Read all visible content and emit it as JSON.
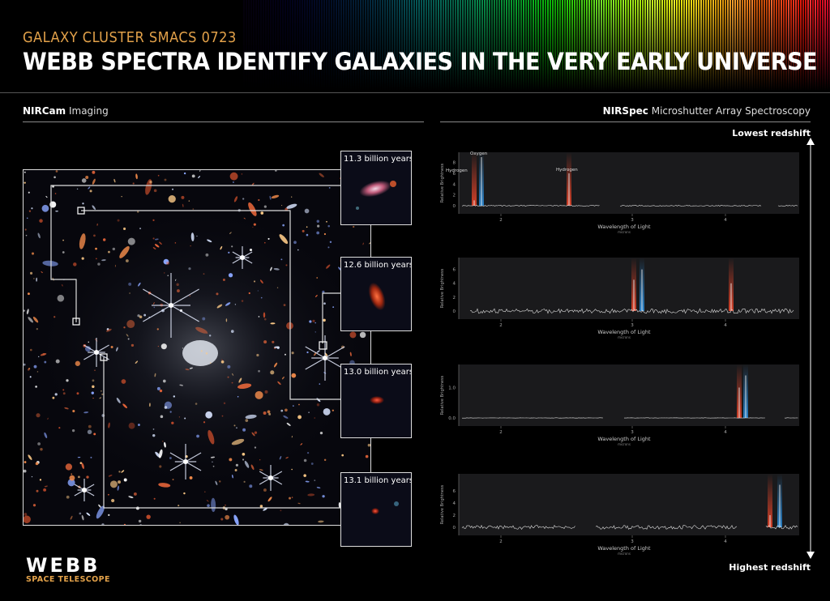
{
  "header": {
    "subtitle": "GALAXY CLUSTER SMACS 0723",
    "title": "WEBB SPECTRA IDENTIFY GALAXIES IN THE VERY EARLY UNIVERSE"
  },
  "left_section": {
    "bold": "NIRCam",
    "rest": " Imaging"
  },
  "right_section": {
    "bold": "NIRSpec",
    "rest": " Microshutter Array Spectroscopy"
  },
  "redshift": {
    "top": "Lowest redshift",
    "bottom": "Highest redshift"
  },
  "thumbnails": [
    {
      "label": "11.3 billion years"
    },
    {
      "label": "12.6 billion years"
    },
    {
      "label": "13.0 billion years"
    },
    {
      "label": "13.1 billion years"
    }
  ],
  "panels": [
    {
      "ylabel": "Relative Brightness",
      "xlabel": "Wavelength of Light",
      "xunit": "microns",
      "yticks": [
        "0",
        "2",
        "4",
        "6",
        "8"
      ],
      "xticks": [
        "2",
        "3",
        "4"
      ],
      "annotations": [
        "Hydrogen",
        "Oxygen",
        "Hydrogen"
      ]
    },
    {
      "ylabel": "Relative Brightness",
      "xlabel": "Wavelength of Light",
      "xunit": "microns",
      "yticks": [
        "0",
        "2",
        "4",
        "6"
      ],
      "xticks": [
        "2",
        "3",
        "4"
      ],
      "annotations": []
    },
    {
      "ylabel": "Relative Brightness",
      "xlabel": "Wavelength of Light",
      "xunit": "microns",
      "yticks": [
        "0.0",
        "1.0"
      ],
      "xticks": [
        "2",
        "3",
        "4"
      ],
      "annotations": []
    },
    {
      "ylabel": "Relative Brightness",
      "xlabel": "Wavelength of Light",
      "xunit": "microns",
      "yticks": [
        "0",
        "2",
        "4",
        "6"
      ],
      "xticks": [
        "2",
        "3",
        "4"
      ],
      "annotations": []
    }
  ],
  "logo": {
    "main": "WEBB",
    "sub": "SPACE TELESCOPE"
  },
  "colors": {
    "accent": "#e3a24a",
    "hydrogen_line": "#e8452a",
    "oxygen_line": "#2a8ad8"
  }
}
